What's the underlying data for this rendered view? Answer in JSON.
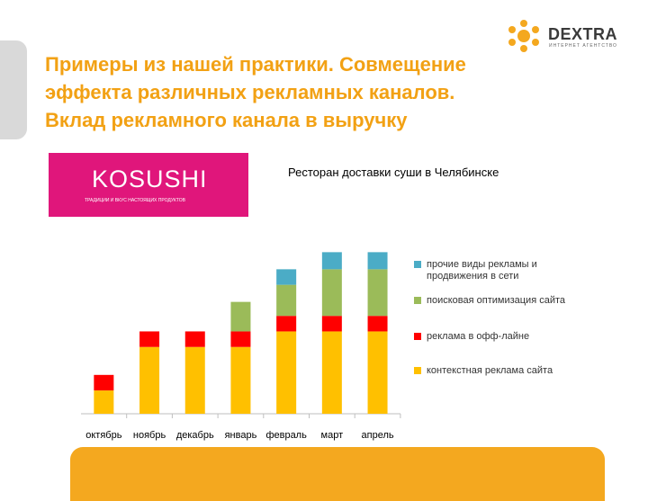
{
  "slide": {
    "title_lines": [
      "Примеры из нашей практики. Совмещение",
      "эффекта различных рекламных каналов.",
      "Вклад рекламного канала в выручку"
    ],
    "subtitle": "Ресторан доставки суши в Челябинске"
  },
  "logo": {
    "word": "DEXTRA",
    "tagline": "ИНТЕРНЕТ АГЕНТСТВО",
    "icon": "gear-icon"
  },
  "brand": {
    "name": "KOSUSHI",
    "tagline": "ТРАДИЦИИ И ВКУС НАСТОЯЩИХ ПРОДУКТОВ"
  },
  "colors": {
    "title": "#f2a114",
    "brand_bg": "#e0167b",
    "accent_bar": "#f4a81f"
  },
  "chart_data": {
    "type": "bar",
    "stacked": true,
    "categories": [
      "октябрь",
      "ноябрь",
      "декабрь",
      "январь",
      "февраль",
      "март",
      "апрель"
    ],
    "series": [
      {
        "name": "контекстная реклама сайта",
        "color": "#ffc000",
        "values": [
          1.5,
          4.3,
          4.3,
          4.3,
          5.3,
          5.3,
          5.3
        ]
      },
      {
        "name": "реклама в офф-лайне",
        "color": "#ff0000",
        "values": [
          1,
          1,
          1,
          1,
          1,
          1,
          1
        ]
      },
      {
        "name": "поисковая оптимизация сайта",
        "color": "#9bbb59",
        "values": [
          0,
          0,
          0,
          1.9,
          2,
          3,
          3
        ]
      },
      {
        "name": "прочие виды рекламы и продвижения в сети",
        "color": "#4bacc6",
        "values": [
          0,
          0,
          0,
          0,
          1,
          1.1,
          1.1
        ]
      }
    ],
    "ylim": [
      0,
      11
    ],
    "grid": false,
    "legend": "right"
  }
}
